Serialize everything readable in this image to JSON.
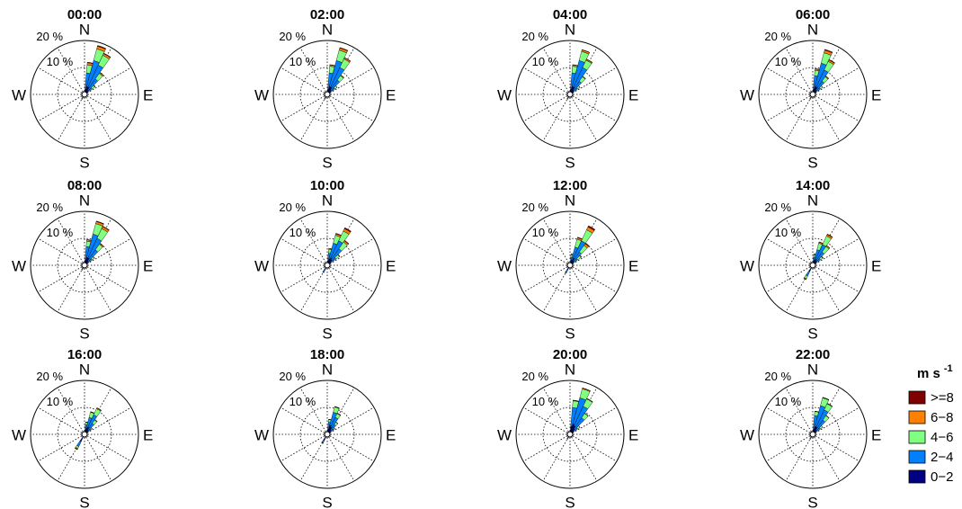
{
  "chart_data": [
    {
      "type": "windrose",
      "title": "00:00",
      "compass": [
        "N",
        "E",
        "S",
        "W"
      ],
      "rlim": [
        0,
        20
      ],
      "rticks": [
        {
          "value": 10,
          "label": "10 %"
        },
        {
          "value": 20,
          "label": "20 %"
        }
      ],
      "directions": [
        10,
        20,
        30,
        40,
        50,
        210
      ],
      "series": [
        {
          "name": ">=8",
          "color": "#800000",
          "values": [
            0.2,
            0.3,
            0.2,
            0.1,
            0,
            0
          ]
        },
        {
          "name": "6−8",
          "color": "#ff8000",
          "values": [
            0.8,
            1,
            0.7,
            0.4,
            0.2,
            0
          ]
        },
        {
          "name": "4−6",
          "color": "#80ff80",
          "values": [
            3,
            4.5,
            4,
            2.5,
            1.2,
            0
          ]
        },
        {
          "name": "2−4",
          "color": "#0080ff",
          "values": [
            6,
            10,
            9,
            5,
            2,
            0.5
          ]
        },
        {
          "name": "0−2",
          "color": "#000080",
          "values": [
            2,
            3,
            3,
            2,
            1.5,
            1.5
          ]
        }
      ]
    },
    {
      "type": "windrose",
      "title": "02:00",
      "compass": [
        "N",
        "E",
        "S",
        "W"
      ],
      "rlim": [
        0,
        20
      ],
      "rticks": [
        {
          "value": 10,
          "label": "10 %"
        },
        {
          "value": 20,
          "label": "20 %"
        }
      ],
      "directions": [
        10,
        20,
        30,
        40,
        50,
        210
      ],
      "series": [
        {
          "name": ">=8",
          "color": "#800000",
          "values": [
            0.1,
            0.2,
            0.1,
            0,
            0,
            0
          ]
        },
        {
          "name": "6−8",
          "color": "#ff8000",
          "values": [
            0.5,
            0.8,
            0.5,
            0.3,
            0,
            0
          ]
        },
        {
          "name": "4−6",
          "color": "#80ff80",
          "values": [
            2.5,
            4,
            3.5,
            2,
            1,
            0
          ]
        },
        {
          "name": "2−4",
          "color": "#0080ff",
          "values": [
            6,
            10,
            8,
            4.5,
            2,
            0.5
          ]
        },
        {
          "name": "0−2",
          "color": "#000080",
          "values": [
            2,
            3,
            3,
            2,
            1.5,
            1.5
          ]
        }
      ]
    },
    {
      "type": "windrose",
      "title": "04:00",
      "compass": [
        "N",
        "E",
        "S",
        "W"
      ],
      "rlim": [
        0,
        20
      ],
      "rticks": [
        {
          "value": 10,
          "label": "10 %"
        },
        {
          "value": 20,
          "label": "20 %"
        }
      ],
      "directions": [
        10,
        20,
        30,
        40,
        50,
        210
      ],
      "series": [
        {
          "name": ">=8",
          "color": "#800000",
          "values": [
            0.1,
            0.1,
            0.1,
            0,
            0,
            0
          ]
        },
        {
          "name": "6−8",
          "color": "#ff8000",
          "values": [
            0.5,
            0.6,
            0.4,
            0.2,
            0,
            0
          ]
        },
        {
          "name": "4−6",
          "color": "#80ff80",
          "values": [
            2.5,
            3.5,
            3,
            2,
            1,
            0
          ]
        },
        {
          "name": "2−4",
          "color": "#0080ff",
          "values": [
            6,
            10,
            8,
            4,
            2,
            0.5
          ]
        },
        {
          "name": "0−2",
          "color": "#000080",
          "values": [
            2,
            3,
            3,
            2,
            1.5,
            1.5
          ]
        }
      ]
    },
    {
      "type": "windrose",
      "title": "06:00",
      "compass": [
        "N",
        "E",
        "S",
        "W"
      ],
      "rlim": [
        0,
        20
      ],
      "rticks": [
        {
          "value": 10,
          "label": "10 %"
        },
        {
          "value": 20,
          "label": "20 %"
        }
      ],
      "directions": [
        10,
        20,
        30,
        40,
        50,
        210
      ],
      "series": [
        {
          "name": ">=8",
          "color": "#800000",
          "values": [
            0.1,
            0.3,
            0.2,
            0.1,
            0,
            0
          ]
        },
        {
          "name": "6−8",
          "color": "#ff8000",
          "values": [
            0.5,
            1,
            0.6,
            0.3,
            0,
            0
          ]
        },
        {
          "name": "4−6",
          "color": "#80ff80",
          "values": [
            2,
            4,
            3.5,
            2,
            1,
            0
          ]
        },
        {
          "name": "2−4",
          "color": "#0080ff",
          "values": [
            5,
            9,
            7,
            4,
            2,
            0.5
          ]
        },
        {
          "name": "0−2",
          "color": "#000080",
          "values": [
            2,
            3,
            3,
            2,
            1.5,
            1.5
          ]
        }
      ]
    },
    {
      "type": "windrose",
      "title": "08:00",
      "compass": [
        "N",
        "E",
        "S",
        "W"
      ],
      "rlim": [
        0,
        20
      ],
      "rticks": [
        {
          "value": 10,
          "label": "10 %"
        },
        {
          "value": 20,
          "label": "20 %"
        }
      ],
      "directions": [
        10,
        20,
        30,
        40,
        50,
        210
      ],
      "series": [
        {
          "name": ">=8",
          "color": "#800000",
          "values": [
            0.1,
            0.2,
            0.2,
            0.1,
            0,
            0
          ]
        },
        {
          "name": "6−8",
          "color": "#ff8000",
          "values": [
            0.5,
            0.8,
            0.8,
            0.4,
            0.1,
            0
          ]
        },
        {
          "name": "4−6",
          "color": "#80ff80",
          "values": [
            2,
            4,
            4,
            2.5,
            1,
            0
          ]
        },
        {
          "name": "2−4",
          "color": "#0080ff",
          "values": [
            5,
            9,
            8,
            5,
            2,
            0.5
          ]
        },
        {
          "name": "0−2",
          "color": "#000080",
          "values": [
            2,
            3,
            3,
            2,
            1.5,
            1.5
          ]
        }
      ]
    },
    {
      "type": "windrose",
      "title": "10:00",
      "compass": [
        "N",
        "E",
        "S",
        "W"
      ],
      "rlim": [
        0,
        20
      ],
      "rticks": [
        {
          "value": 10,
          "label": "10 %"
        },
        {
          "value": 20,
          "label": "20 %"
        }
      ],
      "directions": [
        10,
        20,
        30,
        40,
        50,
        210
      ],
      "series": [
        {
          "name": ">=8",
          "color": "#800000",
          "values": [
            0,
            0.2,
            0.4,
            0.2,
            0,
            0
          ]
        },
        {
          "name": "6−8",
          "color": "#ff8000",
          "values": [
            0.3,
            0.6,
            1,
            0.6,
            0.2,
            0
          ]
        },
        {
          "name": "4−6",
          "color": "#80ff80",
          "values": [
            1.5,
            3,
            4,
            3,
            1.5,
            0
          ]
        },
        {
          "name": "2−4",
          "color": "#0080ff",
          "values": [
            3,
            6,
            7,
            5,
            2.5,
            1
          ]
        },
        {
          "name": "0−2",
          "color": "#000080",
          "values": [
            1.5,
            2.5,
            3,
            2.5,
            1.5,
            2
          ]
        }
      ]
    },
    {
      "type": "windrose",
      "title": "12:00",
      "compass": [
        "N",
        "E",
        "S",
        "W"
      ],
      "rlim": [
        0,
        20
      ],
      "rticks": [
        {
          "value": 10,
          "label": "10 %"
        },
        {
          "value": 20,
          "label": "20 %"
        }
      ],
      "directions": [
        10,
        20,
        30,
        40,
        50,
        210
      ],
      "series": [
        {
          "name": ">=8",
          "color": "#800000",
          "values": [
            0,
            0.2,
            0.5,
            0.3,
            0,
            0
          ]
        },
        {
          "name": "6−8",
          "color": "#ff8000",
          "values": [
            0.2,
            0.6,
            1.2,
            0.8,
            0.3,
            0
          ]
        },
        {
          "name": "4−6",
          "color": "#80ff80",
          "values": [
            1,
            3,
            4.5,
            3,
            1.5,
            0.2
          ]
        },
        {
          "name": "2−4",
          "color": "#0080ff",
          "values": [
            2,
            5,
            7,
            4,
            2,
            1
          ]
        },
        {
          "name": "0−2",
          "color": "#000080",
          "values": [
            1,
            2,
            3,
            2,
            1.5,
            2
          ]
        }
      ]
    },
    {
      "type": "windrose",
      "title": "14:00",
      "compass": [
        "N",
        "E",
        "S",
        "W"
      ],
      "rlim": [
        0,
        20
      ],
      "rticks": [
        {
          "value": 10,
          "label": "10 %"
        },
        {
          "value": 20,
          "label": "20 %"
        }
      ],
      "directions": [
        10,
        20,
        30,
        40,
        50,
        210
      ],
      "series": [
        {
          "name": ">=8",
          "color": "#800000",
          "values": [
            0,
            0.1,
            0.2,
            0.1,
            0,
            0.1
          ]
        },
        {
          "name": "6−8",
          "color": "#ff8000",
          "values": [
            0.2,
            0.4,
            0.6,
            0.4,
            0.2,
            0.3
          ]
        },
        {
          "name": "4−6",
          "color": "#80ff80",
          "values": [
            1,
            2.5,
            3.5,
            2.5,
            1,
            1
          ]
        },
        {
          "name": "2−4",
          "color": "#0080ff",
          "values": [
            2,
            4,
            6,
            4,
            2,
            2
          ]
        },
        {
          "name": "0−2",
          "color": "#000080",
          "values": [
            1,
            2,
            2.5,
            2,
            1.5,
            2.5
          ]
        }
      ]
    },
    {
      "type": "windrose",
      "title": "16:00",
      "compass": [
        "N",
        "E",
        "S",
        "W"
      ],
      "rlim": [
        0,
        20
      ],
      "rticks": [
        {
          "value": 10,
          "label": "10 %"
        },
        {
          "value": 20,
          "label": "20 %"
        }
      ],
      "directions": [
        10,
        20,
        30,
        40,
        50,
        210
      ],
      "series": [
        {
          "name": ">=8",
          "color": "#800000",
          "values": [
            0,
            0,
            0.1,
            0,
            0,
            0.2
          ]
        },
        {
          "name": "6−8",
          "color": "#ff8000",
          "values": [
            0.1,
            0.2,
            0.3,
            0.2,
            0,
            0.3
          ]
        },
        {
          "name": "4−6",
          "color": "#80ff80",
          "values": [
            1,
            2,
            2.5,
            1.5,
            0.5,
            0.8
          ]
        },
        {
          "name": "2−4",
          "color": "#0080ff",
          "values": [
            2,
            4,
            5,
            3,
            1.5,
            2
          ]
        },
        {
          "name": "0−2",
          "color": "#000080",
          "values": [
            1.5,
            2.5,
            3,
            2,
            1.5,
            3
          ]
        }
      ]
    },
    {
      "type": "windrose",
      "title": "18:00",
      "compass": [
        "N",
        "E",
        "S",
        "W"
      ],
      "rlim": [
        0,
        20
      ],
      "rticks": [
        {
          "value": 10,
          "label": "10 %"
        },
        {
          "value": 20,
          "label": "20 %"
        }
      ],
      "directions": [
        10,
        20,
        30,
        40,
        50,
        210
      ],
      "series": [
        {
          "name": ">=8",
          "color": "#800000",
          "values": [
            0,
            0,
            0,
            0,
            0,
            0
          ]
        },
        {
          "name": "6−8",
          "color": "#ff8000",
          "values": [
            0.1,
            0.2,
            0.2,
            0.1,
            0,
            0
          ]
        },
        {
          "name": "4−6",
          "color": "#80ff80",
          "values": [
            1,
            2,
            1.5,
            1,
            0.5,
            0.2
          ]
        },
        {
          "name": "2−4",
          "color": "#0080ff",
          "values": [
            2.5,
            5,
            4,
            2.5,
            1.5,
            1
          ]
        },
        {
          "name": "0−2",
          "color": "#000080",
          "values": [
            2,
            3.5,
            3,
            2,
            1.5,
            2.5
          ]
        }
      ]
    },
    {
      "type": "windrose",
      "title": "20:00",
      "compass": [
        "N",
        "E",
        "S",
        "W"
      ],
      "rlim": [
        0,
        20
      ],
      "rticks": [
        {
          "value": 10,
          "label": "10 %"
        },
        {
          "value": 20,
          "label": "20 %"
        }
      ],
      "directions": [
        10,
        20,
        30,
        40,
        50,
        210
      ],
      "series": [
        {
          "name": ">=8",
          "color": "#800000",
          "values": [
            0,
            0,
            0,
            0,
            0,
            0
          ]
        },
        {
          "name": "6−8",
          "color": "#ff8000",
          "values": [
            0.2,
            0.3,
            0.2,
            0.1,
            0,
            0
          ]
        },
        {
          "name": "4−6",
          "color": "#80ff80",
          "values": [
            2.5,
            3.5,
            3,
            2,
            1,
            0
          ]
        },
        {
          "name": "2−4",
          "color": "#0080ff",
          "values": [
            7,
            10,
            8,
            5,
            2,
            0.5
          ]
        },
        {
          "name": "0−2",
          "color": "#000080",
          "values": [
            3,
            4,
            3.5,
            2.5,
            1.5,
            1.5
          ]
        }
      ]
    },
    {
      "type": "windrose",
      "title": "22:00",
      "compass": [
        "N",
        "E",
        "S",
        "W"
      ],
      "rlim": [
        0,
        20
      ],
      "rticks": [
        {
          "value": 10,
          "label": "10 %"
        },
        {
          "value": 20,
          "label": "20 %"
        }
      ],
      "directions": [
        10,
        20,
        30,
        40,
        50,
        210
      ],
      "series": [
        {
          "name": ">=8",
          "color": "#800000",
          "values": [
            0,
            0,
            0,
            0,
            0,
            0
          ]
        },
        {
          "name": "6−8",
          "color": "#ff8000",
          "values": [
            0.1,
            0.2,
            0.2,
            0.1,
            0,
            0
          ]
        },
        {
          "name": "4−6",
          "color": "#80ff80",
          "values": [
            1.5,
            3,
            2.5,
            2,
            1,
            0
          ]
        },
        {
          "name": "2−4",
          "color": "#0080ff",
          "values": [
            5,
            8,
            7,
            4.5,
            2,
            0.5
          ]
        },
        {
          "name": "0−2",
          "color": "#000080",
          "values": [
            2,
            3,
            3,
            2,
            1.5,
            1.5
          ]
        }
      ],
      "legend_title": "m s",
      "legend_title_sup": "-1"
    }
  ]
}
